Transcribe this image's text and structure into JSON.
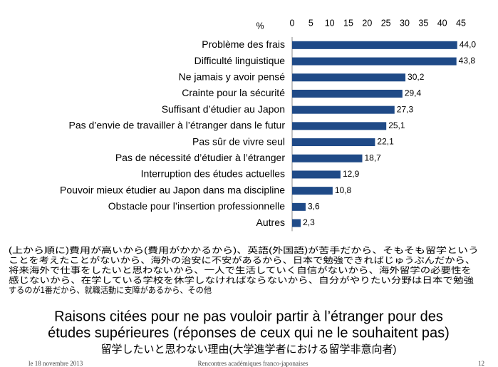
{
  "chart_data": {
    "type": "bar",
    "orientation": "horizontal",
    "axis_label": "%",
    "categories": [
      "Problème des frais",
      "Difficulté linguistique",
      "Ne jamais y avoir pensé",
      "Crainte pour la sécurité",
      "Suffisant d’étudier au Japon",
      "Pas d’envie de travailler à l’étranger dans le futur",
      "Pas sûr de vivre seul",
      "Pas de nécessité d’étudier à l’étranger",
      "Interruption des études actuelles",
      "Pouvoir mieux étudier au Japon dans ma discipline",
      "Obstacle pour l’insertion professionnelle",
      "Autres"
    ],
    "values": [
      44.0,
      43.8,
      30.2,
      29.4,
      27.3,
      25.1,
      22.1,
      18.7,
      12.9,
      10.8,
      3.6,
      2.3
    ],
    "value_labels": [
      "44,0",
      "43,8",
      "30,2",
      "29,4",
      "27,3",
      "25,1",
      "22,1",
      "18,7",
      "12,9",
      "10,8",
      "3,6",
      "2,3"
    ],
    "color": "#1f4a87",
    "xlim": [
      0,
      45
    ],
    "xticks": [
      0,
      5,
      10,
      15,
      20,
      25,
      30,
      35,
      40,
      45
    ],
    "grid": false
  },
  "slide": {
    "note_lines": [
      "(上から順に)費用が高いから(費用がかかるから)、英語(外国語)が苦手だから、そもそも留学という",
      "ことを考えたことがないから、海外の治安に不安があるから、日本で勉強できればじゅうぶんだから、",
      "将来海外で仕事をしたいと思わないから、一人で生活していく自信がないから、海外留学の必要性を",
      "感じないから、在学している学校を休学しなければならないから、自分がやりたい分野は日本で勉強",
      "するのが1番だから、就職活動に支障があるから、その他"
    ],
    "title_lines": [
      "Raisons citées pour ne pas vouloir partir à l’étranger pour des",
      "études supérieures (réponses de ceux qui ne le souhaitent pas)"
    ],
    "subtitle": "留学したいと思わない理由(大学進学者における留学非意向者)",
    "footer": {
      "date": "le 18 novembre 2013",
      "event": "Rencontres académiques franco-japonaises",
      "page": "12"
    }
  }
}
